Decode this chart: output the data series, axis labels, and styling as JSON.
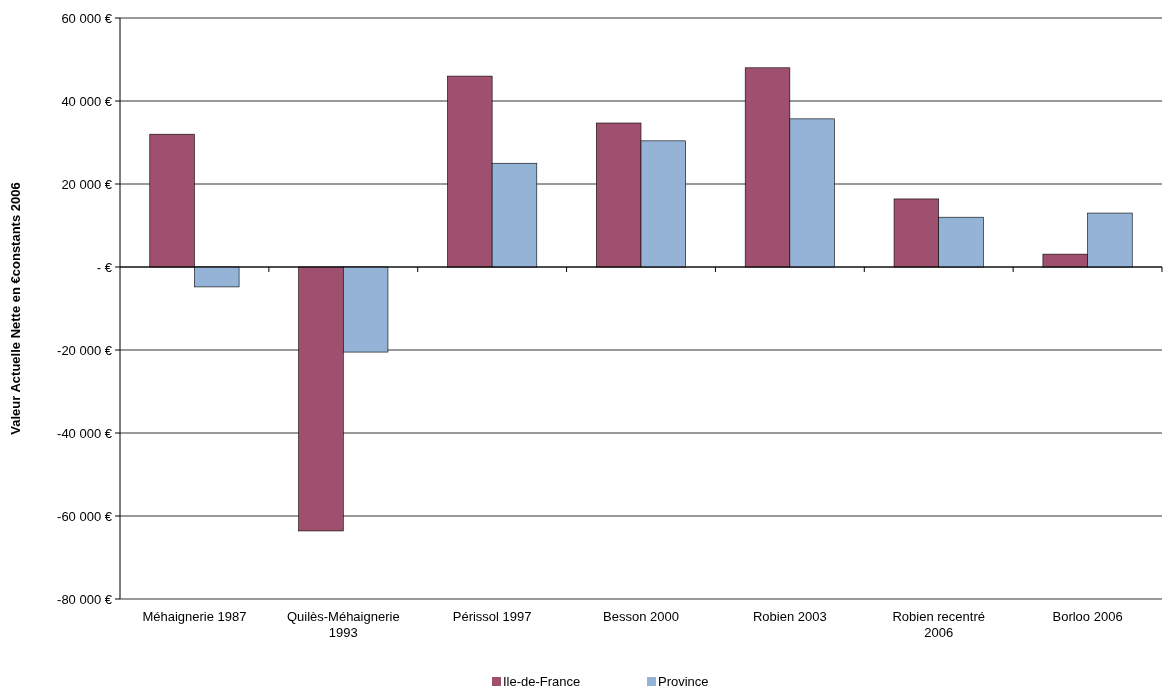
{
  "chart_data": {
    "type": "bar",
    "ylabel": "Valeur Actuelle Nette en €constants 2006",
    "categories": [
      "Méhaignerie 1987",
      "Quilès-Méhaignerie 1993",
      "Périssol 1997",
      "Besson 2000",
      "Robien 2003",
      "Robien recentré 2006",
      "Borloo 2006"
    ],
    "series": [
      {
        "name": "Ile-de-France",
        "color": "#a0506f",
        "values": [
          32000,
          -63600,
          46000,
          34700,
          48000,
          16400,
          3100
        ]
      },
      {
        "name": "Province",
        "color": "#95b3d7",
        "values": [
          -4800,
          -20500,
          25000,
          30400,
          35700,
          12000,
          13000
        ]
      }
    ],
    "ylim": [
      -80000,
      60000
    ],
    "yticks": [
      {
        "value": -80000,
        "label": "-80 000 €"
      },
      {
        "value": -60000,
        "label": "-60 000 €"
      },
      {
        "value": -40000,
        "label": "-40 000 €"
      },
      {
        "value": -20000,
        "label": "-20 000 €"
      },
      {
        "value": 0,
        "label": "-   €"
      },
      {
        "value": 20000,
        "label": "20 000 €"
      },
      {
        "value": 40000,
        "label": "40 000 €"
      },
      {
        "value": 60000,
        "label": "60 000 €"
      }
    ],
    "grid": "y",
    "legend": "bottom"
  }
}
